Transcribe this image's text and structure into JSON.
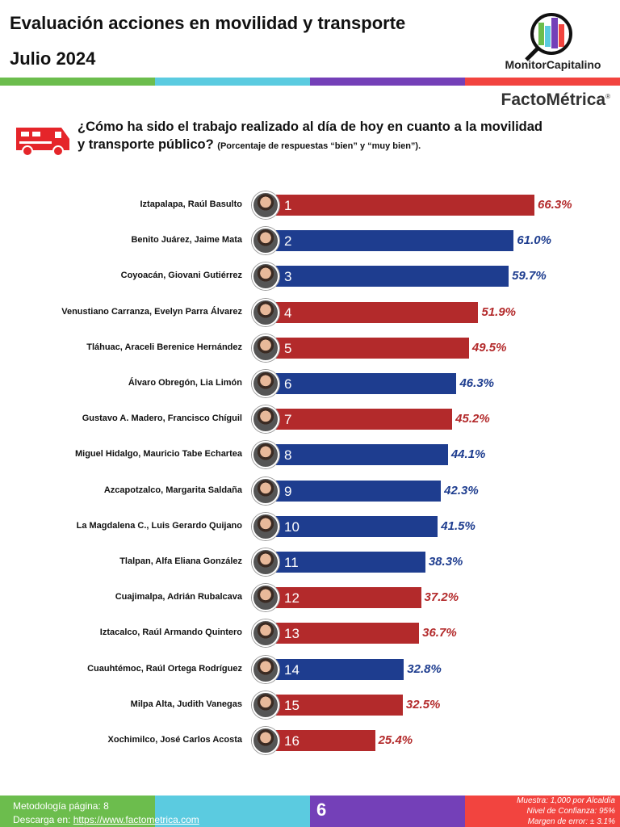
{
  "header": {
    "title": "Evaluación acciones en movilidad y transporte",
    "subtitle": "Julio 2024",
    "logo_text": "MonitorCapitalino",
    "brand": "FactoMétrica",
    "brand_mark": "®"
  },
  "colors": {
    "red": "#b32a2b",
    "blue": "#1e3d8f",
    "stripe": [
      "#6cbd4d",
      "#5bcbe0",
      "#7440b8",
      "#f2443f"
    ]
  },
  "question": {
    "text": "¿Cómo ha sido el trabajo realizado al día de hoy en cuanto a la movilidad y transporte público?",
    "note": "(Porcentaje de respuestas “bien” y “muy bien”)."
  },
  "chart_data": {
    "type": "bar",
    "orientation": "horizontal",
    "xlim": [
      0,
      100
    ],
    "categories": [
      "Iztapalapa, Raúl Basulto",
      "Benito Juárez, Jaime Mata",
      "Coyoacán, Giovani Gutiérrez",
      "Venustiano Carranza, Evelyn Parra Álvarez",
      "Tláhuac, Araceli Berenice Hernández",
      "Álvaro Obregón, Lia Limón",
      "Gustavo A. Madero, Francisco Chíguil",
      "Miguel Hidalgo, Mauricio Tabe Echartea",
      "Azcapotzalco, Margarita Saldaña",
      "La Magdalena C., Luis Gerardo Quijano",
      "Tlalpan, Alfa Eliana González",
      "Cuajimalpa, Adrián Rubalcava",
      "Iztacalco, Raúl Armando Quintero",
      "Cuauhtémoc, Raúl Ortega Rodríguez",
      "Milpa Alta, Judith Vanegas",
      "Xochimilco, José Carlos Acosta"
    ],
    "ranks": [
      "1",
      "2",
      "3",
      "4",
      "5",
      "6",
      "7",
      "8",
      "9",
      "10",
      "11",
      "12",
      "13",
      "14",
      "15",
      "16"
    ],
    "values": [
      66.3,
      61.0,
      59.7,
      51.9,
      49.5,
      46.3,
      45.2,
      44.1,
      42.3,
      41.5,
      38.3,
      37.2,
      36.7,
      32.8,
      32.5,
      25.4
    ],
    "labels": [
      "66.3%",
      "61.0%",
      "59.7%",
      "51.9%",
      "49.5%",
      "46.3%",
      "45.2%",
      "44.1%",
      "42.3%",
      "41.5%",
      "38.3%",
      "37.2%",
      "36.7%",
      "32.8%",
      "32.5%",
      "25.4%"
    ],
    "bar_colors": [
      "red",
      "blue",
      "blue",
      "red",
      "red",
      "blue",
      "red",
      "blue",
      "blue",
      "blue",
      "blue",
      "red",
      "red",
      "blue",
      "red",
      "red"
    ]
  },
  "footer": {
    "methodology": "Metodología página: 8",
    "download_label": "Descarga en:",
    "download_url": "https://www.factometrica.com",
    "page": "6",
    "sample": "Muestra:  1,000 por Alcaldía",
    "confidence": "Nivel de Confianza: 95%",
    "margin": "Margen de error: ± 3.1%"
  }
}
